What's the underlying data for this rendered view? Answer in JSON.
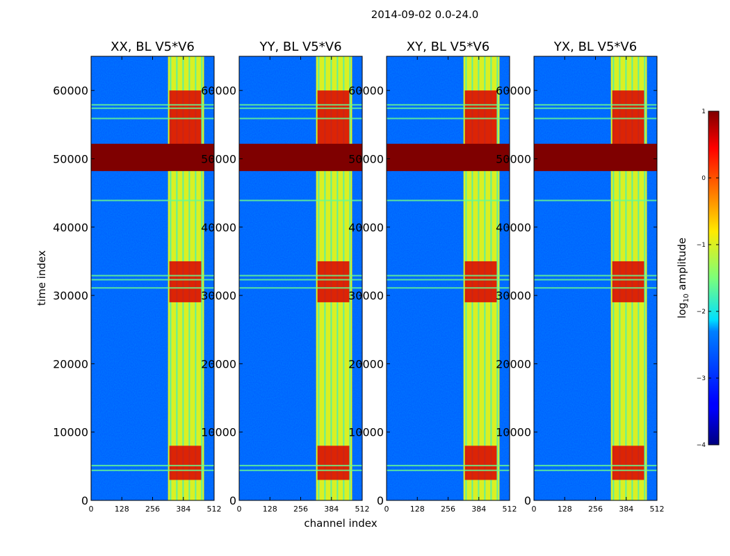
{
  "chart_data": {
    "type": "heatmap",
    "title": "2014-09-02 0.0-24.0",
    "xlabel": "channel index",
    "ylabel": "time index",
    "xlim": [
      0,
      512
    ],
    "ylim": [
      0,
      65000
    ],
    "xticks": [
      0,
      128,
      256,
      384,
      512
    ],
    "yticks": [
      0,
      10000,
      20000,
      30000,
      40000,
      50000,
      60000
    ],
    "colorbar": {
      "label": "log10 amplitude",
      "label_main": "log",
      "label_sub": "10",
      "label_rest": " amplitude",
      "range": [
        -4,
        1
      ],
      "ticks": [
        1,
        0,
        -1,
        -2,
        -3,
        -4
      ],
      "colormap": "jet"
    },
    "panels": [
      {
        "title": "XX, BL V5*V6",
        "pol": "XX"
      },
      {
        "title": "YY, BL V5*V6",
        "pol": "YY"
      },
      {
        "title": "XY, BL V5*V6",
        "pol": "XY"
      },
      {
        "title": "YX, BL V5*V6",
        "pol": "YX"
      }
    ],
    "features": {
      "flagged_block_time": [
        48200,
        52200
      ],
      "flagged_value": 1.0,
      "background_value": -2.6,
      "rfi_band_channels": [
        320,
        470
      ],
      "rfi_band_value": -1.0,
      "bright_bursts": [
        [
          3000,
          8000
        ],
        [
          29000,
          35000
        ],
        [
          52000,
          60000
        ]
      ],
      "burst_value": 0.6,
      "horizontal_lines_time": [
        4500,
        5200,
        31200,
        32400,
        33000,
        44000,
        56000,
        57500,
        58000
      ]
    }
  }
}
